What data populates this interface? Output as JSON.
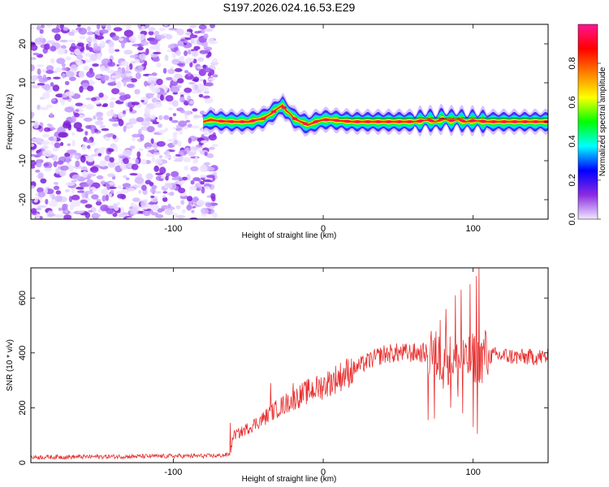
{
  "title": "S197.2026.024.16.53.E29",
  "chart_data": [
    {
      "type": "heatmap",
      "name": "spectrogram",
      "xlabel": "Height of straight line (km)",
      "ylabel": "Frequency (Hz)",
      "xlim": [
        -195,
        150
      ],
      "ylim": [
        -25,
        25
      ],
      "x_ticks": [
        -100,
        0,
        100
      ],
      "y_ticks": [
        -20,
        -10,
        0,
        10,
        20
      ],
      "noise_region_x": [
        -195,
        -72
      ],
      "signal_ridge": {
        "x": [
          -80,
          -75,
          -70,
          -60,
          -50,
          -40,
          -35,
          -30,
          -27,
          -25,
          -22,
          -20,
          -15,
          -10,
          -5,
          0,
          5,
          10,
          20,
          40,
          60,
          65,
          70,
          75,
          80,
          85,
          90,
          95,
          100,
          110,
          130,
          150
        ],
        "freq": [
          0,
          0.5,
          0.2,
          0,
          0,
          0.8,
          2,
          3.5,
          4.2,
          3,
          2,
          1,
          0,
          -0.8,
          0,
          0.5,
          0.5,
          0.3,
          0,
          0,
          0,
          0.2,
          0.5,
          0,
          0.8,
          0.3,
          0.6,
          0,
          0.3,
          0,
          0,
          0
        ]
      },
      "colorbar": {
        "label": "Normalized spectral amplitude",
        "range": [
          0,
          1
        ],
        "ticks": [
          "0.0",
          "0.2",
          "0.4",
          "0.6",
          "0.8"
        ],
        "colors": [
          "#f0e8ff",
          "#8a2be2",
          "#0000ff",
          "#00ffff",
          "#00ff00",
          "#ffff00",
          "#ff7f00",
          "#ff0000",
          "#ff1493"
        ]
      }
    },
    {
      "type": "line",
      "name": "snr",
      "xlabel": "Height of straight line (km)",
      "ylabel": "SNR (10 * v/v)",
      "xlim": [
        -195,
        150
      ],
      "ylim": [
        0,
        710
      ],
      "x_ticks": [
        -100,
        0,
        100
      ],
      "y_ticks": [
        0,
        200,
        400,
        600
      ],
      "color": "#e83030",
      "envelope": {
        "x": [
          -195,
          -70,
          -62,
          -60,
          -55,
          -40,
          -30,
          -20,
          -10,
          0,
          10,
          20,
          30,
          40,
          50,
          60,
          70,
          80,
          90,
          100,
          110,
          120,
          130,
          140,
          150
        ],
        "y": [
          20,
          25,
          30,
          100,
          110,
          160,
          200,
          230,
          260,
          280,
          310,
          340,
          370,
          395,
          400,
          400,
          400,
          380,
          370,
          380,
          390,
          390,
          385,
          385,
          385
        ]
      },
      "spikes": {
        "x": [
          -62,
          -35,
          -20,
          70,
          72,
          74,
          78,
          80,
          82,
          85,
          88,
          90,
          92,
          93,
          95,
          98,
          100,
          102,
          103,
          104,
          106,
          108
        ],
        "y": [
          145,
          290,
          290,
          155,
          480,
          160,
          520,
          270,
          560,
          200,
          610,
          240,
          630,
          180,
          420,
          650,
          130,
          680,
          105,
          710,
          290,
          480
        ]
      }
    }
  ]
}
